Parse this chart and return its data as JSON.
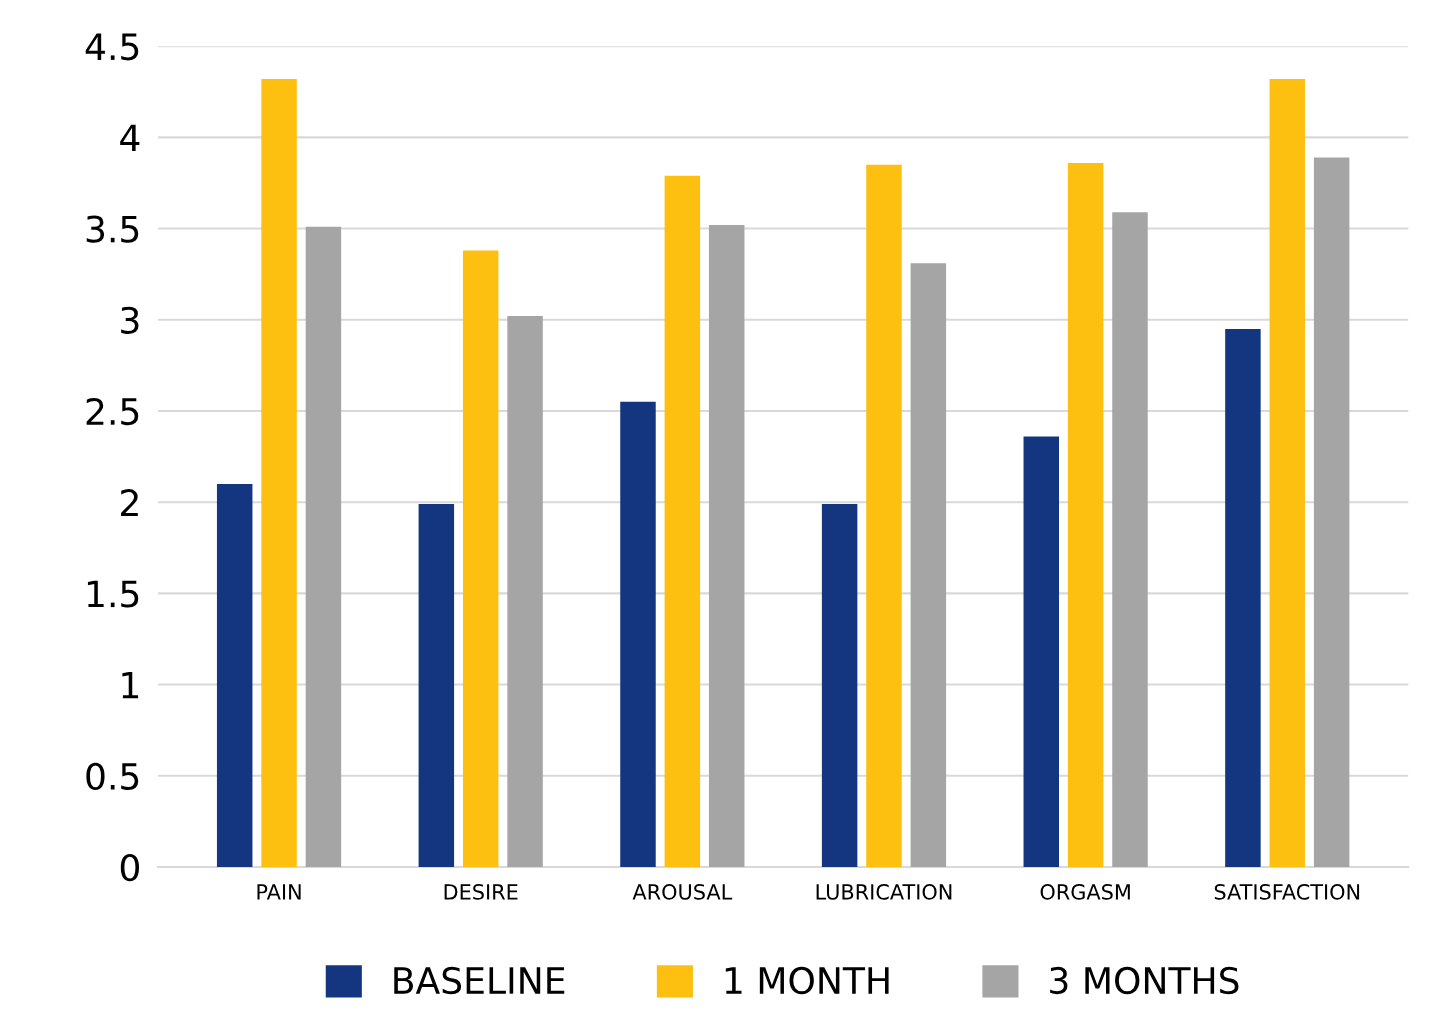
{
  "chart_data": {
    "type": "bar",
    "categories": [
      "PAIN",
      "DESIRE",
      "AROUSAL",
      "LUBRICATION",
      "ORGASM",
      "SATISFACTION"
    ],
    "series": [
      {
        "name": "BASELINE",
        "color": "#143680",
        "values": [
          2.1,
          1.99,
          2.55,
          1.99,
          2.36,
          2.95
        ]
      },
      {
        "name": "1 MONTH",
        "color": "#fdc010",
        "values": [
          4.32,
          3.38,
          3.79,
          3.85,
          3.86,
          4.32
        ]
      },
      {
        "name": "3 MONTHS",
        "color": "#a5a5a5",
        "values": [
          3.51,
          3.02,
          3.52,
          3.31,
          3.59,
          3.89
        ]
      }
    ],
    "ylim": [
      0,
      4.5
    ],
    "yticks": [
      0,
      0.5,
      1,
      1.5,
      2,
      2.5,
      3,
      3.5,
      4,
      4.5
    ],
    "grid": "y",
    "legend": "bottom"
  }
}
